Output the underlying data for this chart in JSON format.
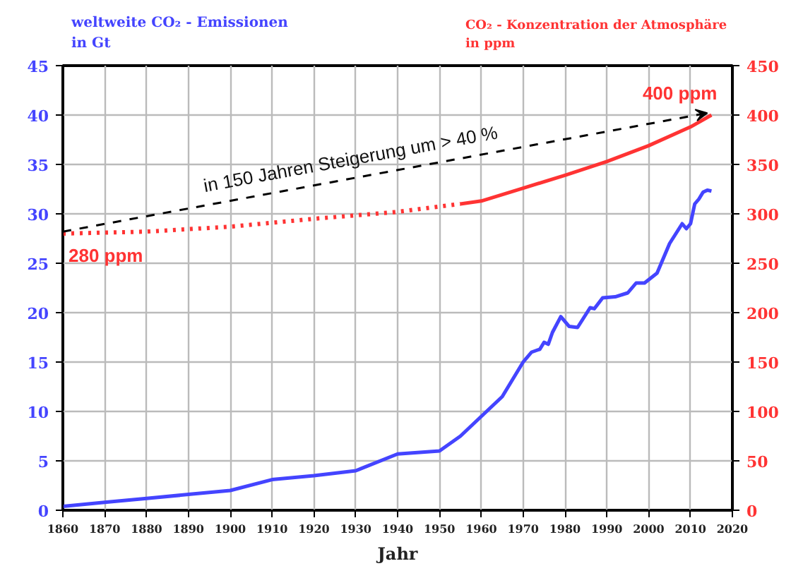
{
  "chart_data": {
    "type": "line",
    "xlabel": "Jahr",
    "ylabel": "weltweite CO₂ - Emissionen\nin Gt",
    "y2label": "CO₂ - Konzentration der Atmosphäre\nin ppm",
    "xlim": [
      1860,
      2020
    ],
    "xticks": [
      1860,
      1870,
      1880,
      1890,
      1900,
      1910,
      1920,
      1930,
      1940,
      1950,
      1960,
      1970,
      1980,
      1990,
      2000,
      2010,
      2020
    ],
    "ylim": [
      0,
      45
    ],
    "yticks": [
      0,
      5,
      10,
      15,
      20,
      25,
      30,
      35,
      40,
      45
    ],
    "y2lim": [
      0,
      450
    ],
    "y2ticks": [
      0,
      50,
      100,
      150,
      200,
      250,
      300,
      350,
      400,
      450
    ],
    "grid": true,
    "series": [
      {
        "color": "#4444ff",
        "line_style": "solid",
        "x": [
          1860,
          1870,
          1880,
          1890,
          1900,
          1910,
          1920,
          1930,
          1940,
          1950,
          1955,
          1960,
          1965,
          1970,
          1972,
          1974,
          1975,
          1976,
          1977,
          1979,
          1981,
          1983,
          1986,
          1987,
          1989,
          1992,
          1995,
          1997,
          1999,
          2002,
          2003,
          2005,
          2008,
          2009,
          2010,
          2011,
          2012,
          2013,
          2014,
          2015
        ],
        "values": [
          0.4,
          0.8,
          1.2,
          1.6,
          2.0,
          3.1,
          3.5,
          4.0,
          5.7,
          6.0,
          7.5,
          9.5,
          11.5,
          15.0,
          16.0,
          16.3,
          17.0,
          16.8,
          18.0,
          19.6,
          18.6,
          18.5,
          20.5,
          20.4,
          21.5,
          21.6,
          22.0,
          23.0,
          23.0,
          24.0,
          25.0,
          27.0,
          29.0,
          28.5,
          29.0,
          31.0,
          31.5,
          32.2,
          32.4,
          32.3
        ]
      },
      {
        "color": "#ff3333",
        "line_style": "dotted",
        "axis": "y2",
        "x": [
          1860,
          1880,
          1900,
          1920,
          1940,
          1955
        ],
        "values": [
          280,
          282,
          287,
          295,
          302,
          310
        ]
      },
      {
        "color": "#ff3333",
        "line_style": "solid",
        "axis": "y2",
        "x": [
          1955,
          1960,
          1970,
          1980,
          1990,
          2000,
          2010,
          2015
        ],
        "values": [
          310,
          313,
          326,
          339,
          353,
          369,
          388,
          400
        ]
      }
    ],
    "annotations": [
      "280 ppm",
      "400 ppm",
      "in 150 Jahren Steigerung um > 40 %"
    ]
  }
}
